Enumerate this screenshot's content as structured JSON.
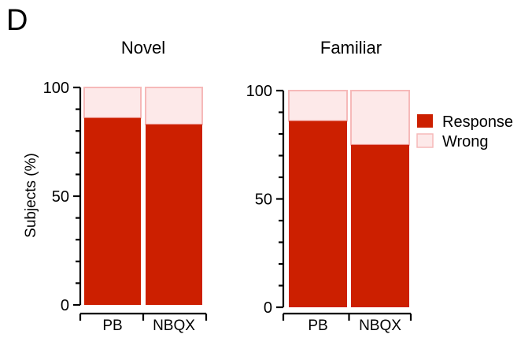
{
  "panel_label": "D",
  "colors": {
    "response": "#cc1f00",
    "wrong_fill": "#fde9e9",
    "wrong_stroke": "#f6b9b9"
  },
  "legend": [
    {
      "label": "Response",
      "color": "#cc1f00"
    },
    {
      "label": "Wrong",
      "color": "#fde9e9"
    }
  ],
  "chart_data": [
    {
      "type": "bar",
      "stacked": true,
      "title": "Novel",
      "ylabel": "Subjects (%)",
      "ylim": [
        0,
        100
      ],
      "yticks": [
        0,
        50,
        100
      ],
      "categories": [
        "PB",
        "NBQX"
      ],
      "series": [
        {
          "name": "Response",
          "values": [
            86,
            83
          ]
        },
        {
          "name": "Wrong",
          "values": [
            14,
            17
          ]
        }
      ]
    },
    {
      "type": "bar",
      "stacked": true,
      "title": "Familiar",
      "ylabel": "",
      "ylim": [
        0,
        100
      ],
      "yticks": [
        0,
        50,
        100
      ],
      "categories": [
        "PB",
        "NBQX"
      ],
      "series": [
        {
          "name": "Response",
          "values": [
            86,
            75
          ]
        },
        {
          "name": "Wrong",
          "values": [
            14,
            25
          ]
        }
      ]
    }
  ]
}
